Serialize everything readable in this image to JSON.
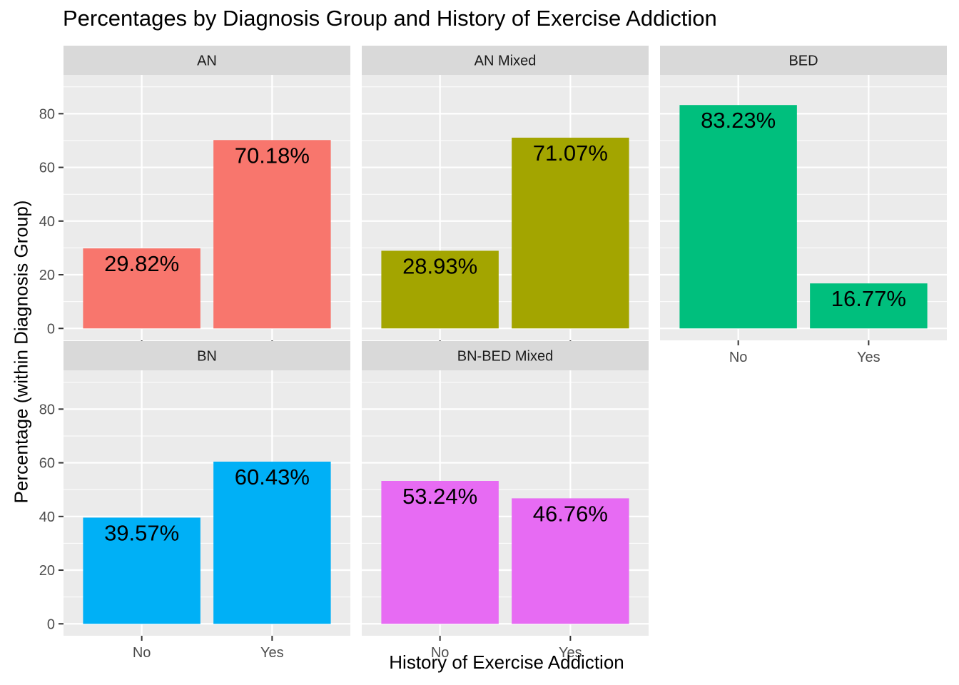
{
  "chart_data": {
    "type": "bar",
    "title": "Percentages by Diagnosis Group and History of Exercise Addiction",
    "xlabel": "History of Exercise Addiction",
    "ylabel": "Percentage (within Diagnosis Group)",
    "categories": [
      "No",
      "Yes"
    ],
    "ylim": [
      0,
      90
    ],
    "yticks": [
      0,
      20,
      40,
      60,
      80
    ],
    "grid": true,
    "legend": "none",
    "facets": [
      {
        "name": "AN",
        "color": "#F8766D",
        "values": [
          29.82,
          70.18
        ],
        "labels": [
          "29.82%",
          "70.18%"
        ]
      },
      {
        "name": "AN Mixed",
        "color": "#A3A500",
        "values": [
          28.93,
          71.07
        ],
        "labels": [
          "28.93%",
          "71.07%"
        ]
      },
      {
        "name": "BED",
        "color": "#00BF7D",
        "values": [
          83.23,
          16.77
        ],
        "labels": [
          "83.23%",
          "16.77%"
        ]
      },
      {
        "name": "BN",
        "color": "#00B0F6",
        "values": [
          39.57,
          60.43
        ],
        "labels": [
          "39.57%",
          "60.43%"
        ]
      },
      {
        "name": "BN-BED Mixed",
        "color": "#E76BF3",
        "values": [
          53.24,
          46.76
        ],
        "labels": [
          "53.24%",
          "46.76%"
        ]
      }
    ]
  }
}
